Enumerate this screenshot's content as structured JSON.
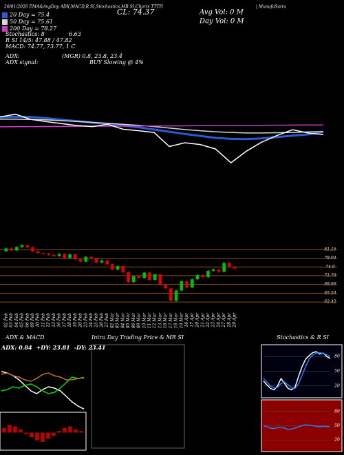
{
  "chart_data": [
    {
      "type": "line",
      "title": "20/01/2026 EMA&AvgDay ADX,MACD,R SI,Stochastics,MR SI,Charts TTTH",
      "subtitle": "| MunafaSutra",
      "stats": [
        "Stochastics: 8",
        "6.63",
        "R SI 14/5: 47.88 / 47.82",
        "MACD: 74.77, 73.77, 1 C",
        "ADX:",
        "(MGR) 0.8, 23.8, 23.4",
        "ADX signal:",
        "BUY Slowing @ 4%",
        "CL: 74.37",
        "Avg Vol: 0  M",
        "Day Vol: 0  M"
      ],
      "ylim": [
        59,
        87
      ],
      "series": [
        {
          "name": "20 Day = 75.4",
          "color": "#2a5bd7",
          "values": [
            81.4,
            81.6,
            81.5,
            81.0,
            80.4,
            79.8,
            79.2,
            78.6,
            78.0,
            77.3,
            76.4,
            75.5,
            74.6,
            73.8,
            73.0,
            72.6,
            72.5,
            72.8,
            73.3,
            73.9,
            74.4,
            75.4
          ]
        },
        {
          "name": "50 Day = 75.61",
          "color": "#d8d8d8",
          "values": [
            80.6,
            80.6,
            80.5,
            80.3,
            80.0,
            79.7,
            79.3,
            78.9,
            78.5,
            78.1,
            77.6,
            77.0,
            76.4,
            75.9,
            75.5,
            75.2,
            75.0,
            75.0,
            75.1,
            75.2,
            75.4,
            75.61
          ]
        },
        {
          "name": "200 Day = 78.27",
          "color": "#c83cc8",
          "values": [
            77.5,
            77.55,
            77.6,
            77.62,
            77.65,
            77.7,
            77.72,
            77.75,
            77.8,
            77.82,
            77.85,
            77.88,
            77.9,
            77.95,
            78.0,
            78.02,
            78.05,
            78.1,
            78.15,
            78.2,
            78.24,
            78.27
          ]
        },
        {
          "color": "#ffffff",
          "values": [
            81.5,
            82.6,
            80.5,
            79.6,
            78.8,
            78.0,
            77.6,
            78.5,
            76.5,
            75.9,
            75.2,
            69.5,
            71.0,
            70.3,
            68.5,
            62.9,
            67.6,
            71.3,
            74.0,
            76.3,
            75.0,
            74.37
          ]
        }
      ]
    },
    {
      "type": "candlestick",
      "categories": [
        "02 Feb",
        "03 Feb",
        "04 Feb",
        "05 Feb",
        "06 Feb",
        "09 Feb",
        "10 Feb",
        "11 Feb",
        "12 Feb",
        "13 Feb",
        "16 Feb",
        "17 Feb",
        "18 Feb",
        "19 Feb",
        "20 Feb",
        "23 Feb",
        "24 Feb",
        "25 Feb",
        "26 Feb",
        "27 Feb",
        "02 Mar",
        "03 Mar",
        "04 Mar",
        "05 Mar",
        "06 Mar",
        "09 Mar",
        "10 Mar",
        "11 Mar",
        "12 Mar",
        "13 Mar",
        "16 Mar",
        "17 Mar",
        "18 Mar",
        "19 Mar",
        "16 Apr",
        "17 Apr",
        "20 Apr",
        "21 Apr",
        "22 Apr",
        "23 Apr",
        "24 Apr",
        "27 Apr",
        "28 Apr",
        "29 Apr"
      ],
      "open": [
        80.5,
        81.5,
        80.8,
        82.0,
        82.6,
        81.9,
        80.5,
        79.8,
        79.6,
        79.2,
        78.8,
        79.5,
        78.0,
        79.4,
        77.6,
        76.8,
        78.5,
        77.9,
        76.5,
        77.2,
        75.9,
        74.0,
        75.2,
        73.0,
        69.5,
        71.6,
        71.0,
        72.9,
        70.3,
        72.3,
        68.5,
        67.3,
        62.9,
        66.5,
        69.8,
        67.6,
        70.5,
        72.0,
        71.3,
        73.5,
        74.0,
        73.2,
        76.3,
        75.0
      ],
      "high": [
        81.9,
        82.0,
        82.4,
        83.1,
        82.9,
        82.2,
        80.9,
        80.2,
        79.9,
        79.6,
        79.9,
        79.8,
        79.8,
        79.7,
        77.9,
        78.9,
        78.8,
        78.1,
        77.6,
        77.5,
        76.2,
        75.6,
        75.5,
        73.4,
        71.9,
        71.9,
        73.3,
        73.1,
        72.6,
        72.5,
        68.9,
        67.6,
        66.9,
        70.2,
        70.1,
        70.9,
        72.4,
        72.3,
        73.9,
        74.4,
        74.3,
        76.7,
        76.6,
        75.3
      ],
      "low": [
        80.2,
        80.5,
        80.5,
        81.7,
        81.6,
        80.2,
        79.5,
        79.2,
        78.9,
        78.5,
        78.5,
        77.7,
        77.8,
        77.3,
        76.4,
        76.5,
        77.5,
        76.1,
        76.1,
        75.6,
        73.7,
        73.6,
        72.6,
        69.1,
        69.2,
        70.6,
        70.7,
        70.0,
        70.0,
        68.1,
        67.0,
        62.2,
        62.5,
        66.2,
        67.3,
        67.3,
        70.2,
        70.9,
        71.0,
        73.1,
        72.8,
        72.9,
        74.7,
        74.0
      ],
      "close": [
        81.5,
        80.8,
        82.0,
        82.6,
        81.9,
        80.5,
        79.8,
        79.6,
        79.2,
        78.8,
        79.5,
        78.0,
        79.4,
        77.6,
        76.8,
        78.5,
        77.9,
        76.5,
        77.2,
        75.9,
        74.0,
        75.2,
        73.0,
        69.5,
        71.6,
        71.0,
        72.9,
        70.3,
        72.3,
        68.5,
        67.3,
        62.9,
        66.5,
        69.8,
        67.6,
        70.5,
        72.0,
        71.3,
        73.5,
        74.0,
        73.2,
        76.3,
        75.0,
        74.37
      ],
      "up_color": "#00c000",
      "down_color": "#e00000",
      "ylim": [
        59.5,
        86.5
      ],
      "yticks": [
        81.15,
        78.03,
        74.9,
        71.79,
        68.66,
        65.54,
        62.42
      ],
      "grid": true
    },
    {
      "type": "line",
      "title": "ADX & MACD",
      "ylim": [
        0,
        40
      ],
      "series": [
        {
          "name": "ADX: 0.84",
          "color": "#ffffff",
          "values": [
            28,
            27,
            25,
            22,
            18,
            14,
            12,
            15,
            17,
            16,
            14,
            10,
            6,
            3,
            0.84
          ]
        },
        {
          "name": "+DY: 23.81",
          "color": "#00e000",
          "values": [
            14,
            15,
            17,
            16,
            18,
            19,
            17,
            14,
            12,
            13,
            16,
            20,
            24,
            23,
            23.81
          ]
        },
        {
          "name": "-DY: 23.41",
          "color": "#c87020",
          "values": [
            26,
            27,
            25,
            24,
            22,
            21,
            23,
            26,
            27,
            25,
            24,
            22,
            22,
            23,
            23.41
          ]
        }
      ]
    },
    {
      "type": "bar",
      "ylim": [
        -1,
        1
      ],
      "color": "#c00000",
      "values": [
        0.3,
        0.5,
        0.4,
        0.2,
        -0.1,
        -0.3,
        -0.5,
        -0.6,
        -0.4,
        -0.2,
        0.1,
        0.3,
        0.4,
        0.2,
        0.1
      ]
    },
    {
      "type": "line",
      "title": "Intra Day Trading Price & MR SI",
      "series": []
    },
    {
      "type": "line",
      "title": "Stochastics & R SI",
      "ylim": [
        0,
        100
      ],
      "yticks": [
        80,
        50,
        20
      ],
      "series": [
        {
          "color": "#ffffff",
          "values": [
            30,
            22,
            15,
            12,
            20,
            35,
            25,
            15,
            12,
            18,
            40,
            60,
            75,
            82,
            88,
            90,
            85,
            87,
            80,
            76
          ]
        },
        {
          "color": "#2a7bff",
          "values": [
            35,
            28,
            20,
            16,
            17,
            25,
            28,
            22,
            16,
            15,
            25,
            42,
            60,
            75,
            83,
            87,
            88,
            86,
            84,
            80
          ]
        }
      ]
    },
    {
      "type": "line",
      "ylim": [
        0,
        100
      ],
      "yticks": [
        80,
        50,
        20
      ],
      "series": [
        {
          "color": "#2a7bff",
          "values": [
            50,
            48,
            45,
            44,
            46,
            47,
            45,
            42,
            43,
            45,
            48,
            50,
            52,
            51,
            50,
            49,
            48,
            49,
            48,
            47.88
          ]
        }
      ]
    }
  ]
}
